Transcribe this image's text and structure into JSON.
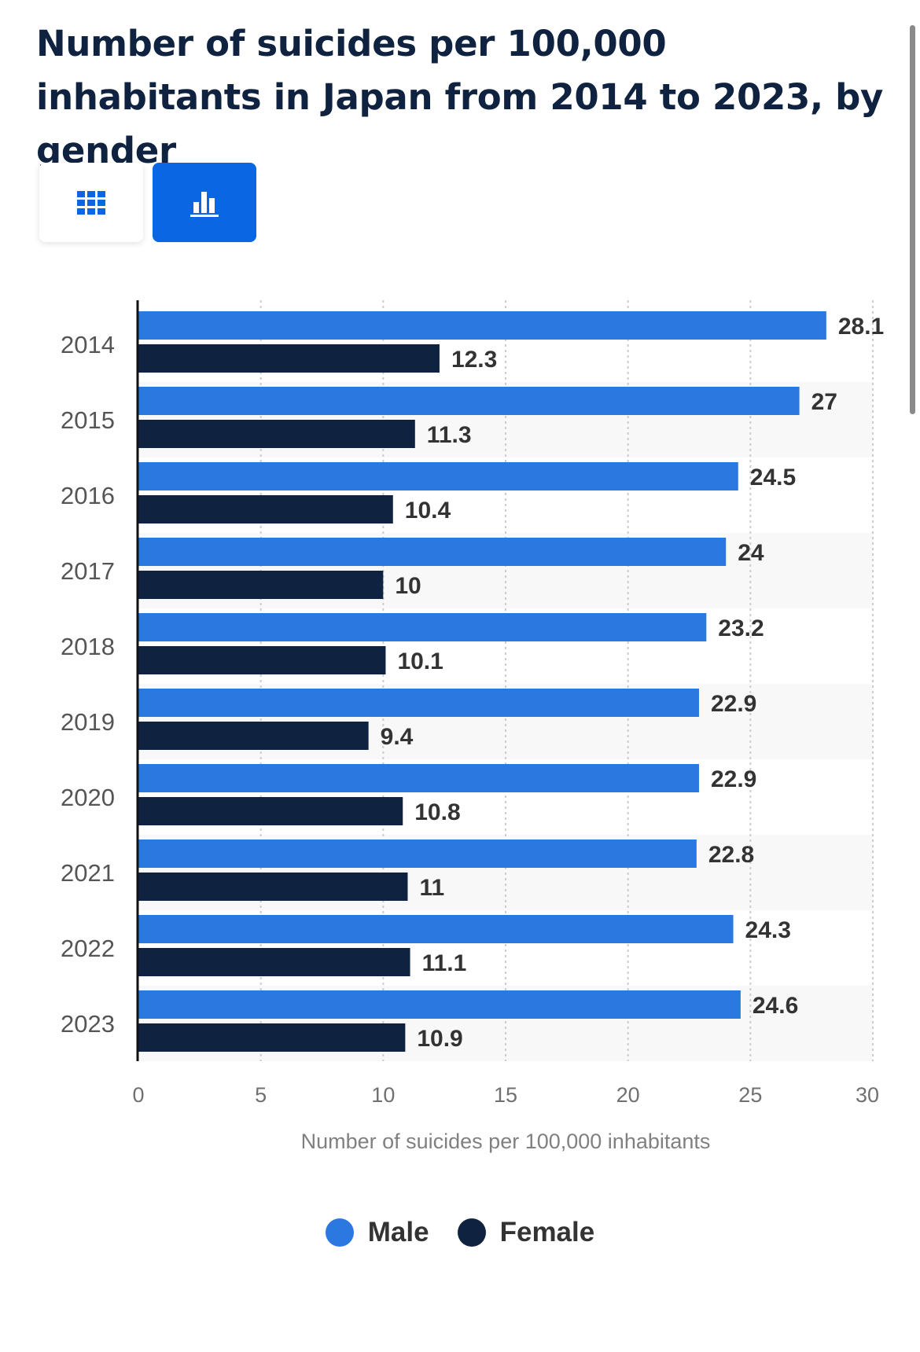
{
  "header": {
    "title": "Number of suicides per 100,000 inhabitants in Japan from 2014 to 2023, by gender"
  },
  "view_toggle": {
    "table_icon": "grid-table-icon",
    "chart_icon": "bar-chart-icon",
    "active": "chart"
  },
  "colors": {
    "male": "#2a78e0",
    "female": "#0f2340",
    "active_button": "#0b66e4"
  },
  "chart_data": {
    "type": "bar",
    "orientation": "horizontal",
    "title": "Number of suicides per 100,000 inhabitants in Japan from 2014 to 2023, by gender",
    "xlabel": "Number of suicides per 100,000 inhabitants",
    "ylabel": "",
    "categories": [
      "2014",
      "2015",
      "2016",
      "2017",
      "2018",
      "2019",
      "2020",
      "2021",
      "2022",
      "2023"
    ],
    "series": [
      {
        "name": "Male",
        "values": [
          28.1,
          27,
          24.5,
          24,
          23.2,
          22.9,
          22.9,
          22.8,
          24.3,
          24.6
        ]
      },
      {
        "name": "Female",
        "values": [
          12.3,
          11.3,
          10.4,
          10,
          10.1,
          9.4,
          10.8,
          11,
          11.1,
          10.9
        ]
      }
    ],
    "xlim": [
      0,
      30
    ],
    "xticks": [
      0,
      5,
      10,
      15,
      20,
      25,
      30
    ],
    "grid": true,
    "legend_position": "bottom"
  }
}
